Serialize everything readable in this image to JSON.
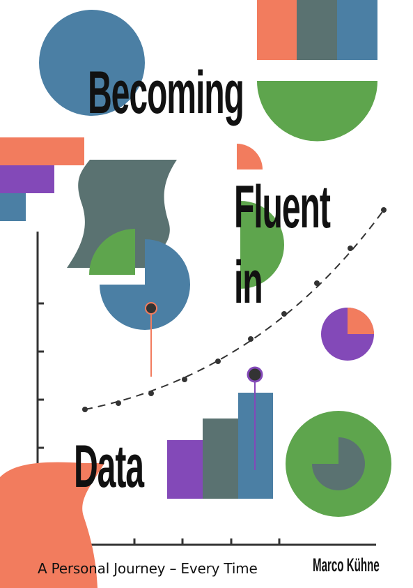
{
  "book": {
    "title_lines": [
      "Becoming",
      "Fluent",
      "in",
      "Data"
    ],
    "subtitle": "A Personal Journey – Every Time",
    "author": "Marco Kühne"
  },
  "colors": {
    "coral": "#f27c5e",
    "slate": "#5a7271",
    "steel_blue": "#4b7fa4",
    "green": "#5ea54d",
    "purple": "#8349b8",
    "ink": "#333333"
  },
  "illustration": {
    "trend_dots": 10,
    "pie_small_fraction": 0.25,
    "donut_fraction": 0.75
  }
}
